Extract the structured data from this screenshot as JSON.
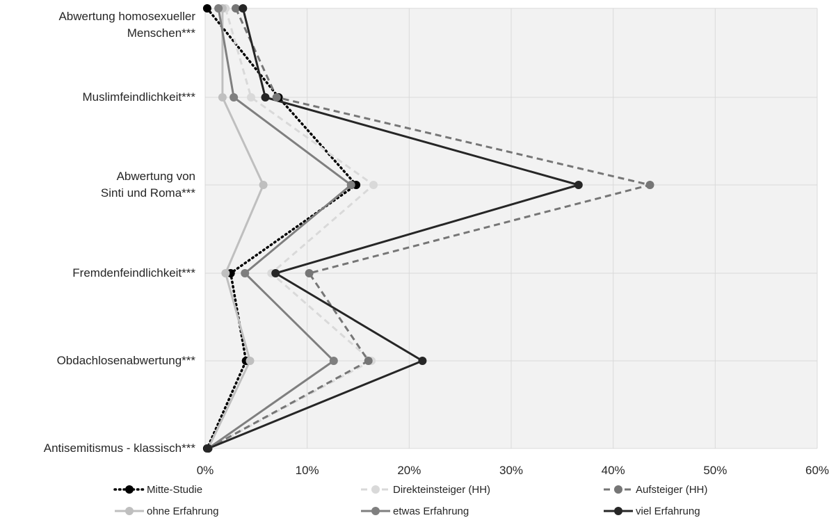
{
  "chart_data": {
    "type": "line",
    "orientation": "horizontal-value-axis",
    "categories": [
      "Abwertung homosexueller Menschen***",
      "Muslimfeindlichkeit***",
      "Abwertung von Sinti und Roma***",
      "Fremdenfeindlichkeit***",
      "Obdachlosenabwertung***",
      "Antisemitismus - klassisch***"
    ],
    "category_lines": [
      [
        "Abwertung homosexueller",
        "Menschen***"
      ],
      [
        "Muslimfeindlichkeit***"
      ],
      [
        "Abwertung von",
        "Sinti und Roma***"
      ],
      [
        "Fremdenfeindlichkeit***"
      ],
      [
        "Obdachlosenabwertung***"
      ],
      [
        "Antisemitismus - klassisch***"
      ]
    ],
    "xlim": [
      0,
      60
    ],
    "xticks": [
      "0%",
      "10%",
      "20%",
      "30%",
      "40%",
      "50%",
      "60%"
    ],
    "grid": true,
    "legend_position": "bottom",
    "series": [
      {
        "name": "Mitte-Studie",
        "color": "#000000",
        "dash": "dotted",
        "values": [
          0.2,
          7.2,
          14.8,
          2.5,
          4.0,
          0.2
        ]
      },
      {
        "name": "Direkteinsteiger (HH)",
        "color": "#d9d9d9",
        "dash": "dashed",
        "values": [
          2.0,
          4.5,
          16.5,
          6.5,
          16.3,
          0.3
        ]
      },
      {
        "name": "Aufsteiger (HH)",
        "color": "#767676",
        "dash": "dashed",
        "values": [
          3.0,
          7.0,
          43.6,
          10.2,
          16.0,
          0.3
        ]
      },
      {
        "name": "ohne Erfahrung",
        "color": "#bfbfbf",
        "dash": "solid",
        "values": [
          1.7,
          1.7,
          5.7,
          2.0,
          4.4,
          0.3
        ]
      },
      {
        "name": "etwas Erfahrung",
        "color": "#7f7f7f",
        "dash": "solid",
        "values": [
          1.3,
          2.8,
          14.3,
          3.9,
          12.6,
          0.3
        ]
      },
      {
        "name": "viel Erfahrung",
        "color": "#262626",
        "dash": "solid",
        "values": [
          3.7,
          5.9,
          36.6,
          6.9,
          21.3,
          0.3
        ]
      }
    ]
  }
}
